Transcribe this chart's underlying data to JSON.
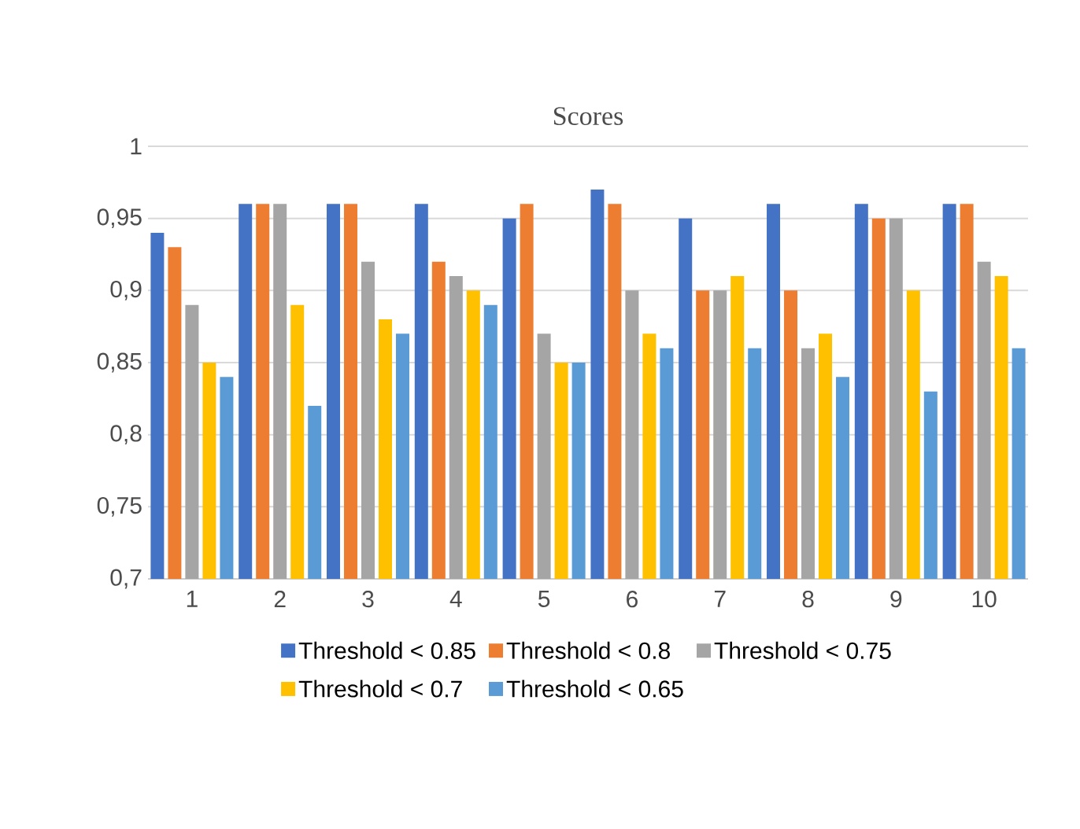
{
  "chart_data": {
    "type": "bar",
    "title": "Scores",
    "categories": [
      "1",
      "2",
      "3",
      "4",
      "5",
      "6",
      "7",
      "8",
      "9",
      "10"
    ],
    "series": [
      {
        "name": "Threshold < 0.85",
        "color": "#4472c4",
        "values": [
          0.94,
          0.96,
          0.96,
          0.96,
          0.95,
          0.97,
          0.95,
          0.96,
          0.96,
          0.96
        ]
      },
      {
        "name": "Threshold < 0.8",
        "color": "#ed7d31",
        "values": [
          0.93,
          0.96,
          0.96,
          0.92,
          0.96,
          0.96,
          0.9,
          0.9,
          0.95,
          0.96
        ]
      },
      {
        "name": "Threshold < 0.75",
        "color": "#a5a5a5",
        "values": [
          0.89,
          0.96,
          0.92,
          0.91,
          0.87,
          0.9,
          0.9,
          0.86,
          0.95,
          0.92
        ]
      },
      {
        "name": "Threshold < 0.7",
        "color": "#ffc000",
        "values": [
          0.85,
          0.89,
          0.88,
          0.9,
          0.85,
          0.87,
          0.91,
          0.87,
          0.9,
          0.91
        ]
      },
      {
        "name": "Threshold < 0.65",
        "color": "#5b9bd5",
        "values": [
          0.84,
          0.82,
          0.87,
          0.89,
          0.85,
          0.86,
          0.86,
          0.84,
          0.83,
          0.86
        ]
      }
    ],
    "ylim": [
      0.7,
      1
    ],
    "yticks": [
      {
        "value": 0.7,
        "label": "0,7"
      },
      {
        "value": 0.75,
        "label": "0,75"
      },
      {
        "value": 0.8,
        "label": "0,8"
      },
      {
        "value": 0.85,
        "label": "0,85"
      },
      {
        "value": 0.9,
        "label": "0,9"
      },
      {
        "value": 0.95,
        "label": "0,95"
      },
      1
    ],
    "grid": "y",
    "legend": "bottom"
  }
}
